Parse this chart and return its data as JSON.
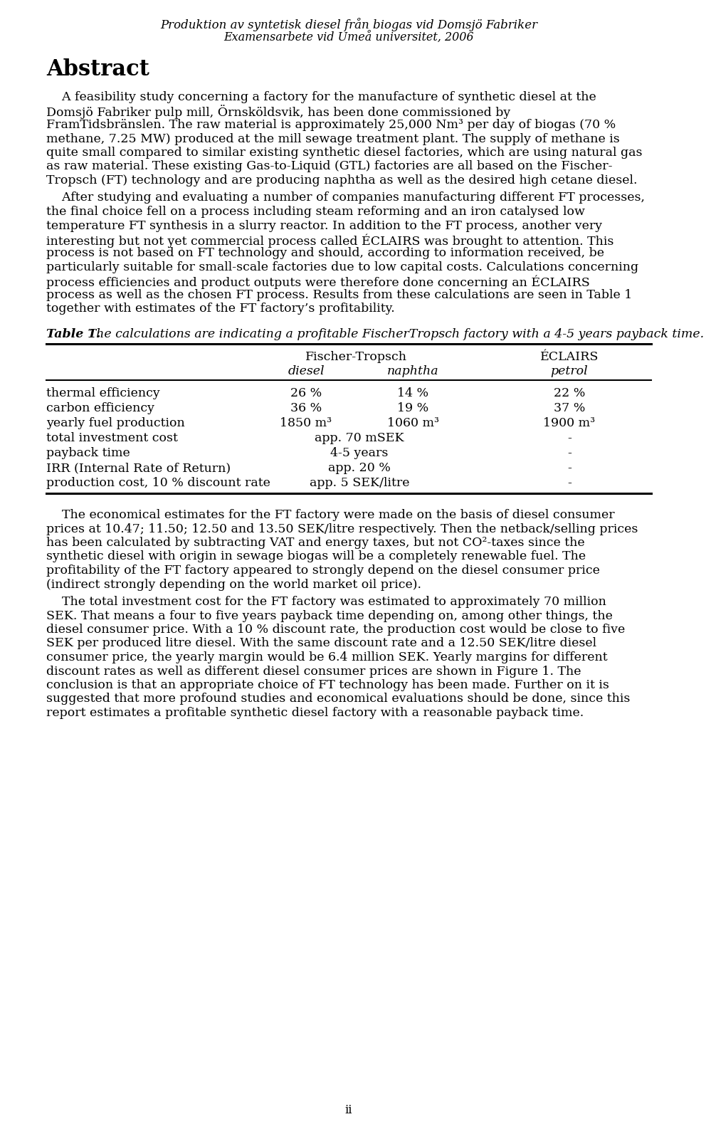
{
  "header_line1": "Produktion av syntetisk diesel från biogas vid Domsjö Fabriker",
  "header_line2": "Examensarbete vid Umeå universitet, 2006",
  "section_title": "Abstract",
  "p1_lines": [
    "    A feasibility study concerning a factory for the manufacture of synthetic diesel at the",
    "Domsjö Fabriker pulp mill, Örnsköldsvik, has been done commissioned by",
    "FramTidsbränslen. The raw material is approximately 25,000 Nm³ per day of biogas (70 %",
    "methane, 7.25 MW) produced at the mill sewage treatment plant. The supply of methane is",
    "quite small compared to similar existing synthetic diesel factories, which are using natural gas",
    "as raw material. These existing Gas-to-Liquid (GTL) factories are all based on the Fischer-",
    "Tropsch (FT) technology and are producing naphtha as well as the desired high cetane diesel."
  ],
  "p2_lines": [
    "    After studying and evaluating a number of companies manufacturing different FT processes,",
    "the final choice fell on a process including steam reforming and an iron catalysed low",
    "temperature FT synthesis in a slurry reactor. In addition to the FT process, another very",
    "interesting but not yet commercial process called ÉCLAIRS was brought to attention. This",
    "process is not based on FT technology and should, according to information received, be",
    "particularly suitable for small-scale factories due to low capital costs. Calculations concerning",
    "process efficiencies and product outputs were therefore done concerning an ÉCLAIRS",
    "process as well as the chosen FT process. Results from these calculations are seen in Table 1",
    "together with estimates of the FT factory’s profitability."
  ],
  "table_caption_bold": "Table 1.",
  "table_caption_italic": " The calculations are indicating a profitable FischerTropsch factory with a 4-5 years payback time.",
  "table_col1_header": "Fischer-Tropsch",
  "table_col2_header": "ÉCLAIRS",
  "table_sub1": "diesel",
  "table_sub2": "naphtha",
  "table_sub3": "petrol",
  "table_rows": [
    [
      "thermal efficiency",
      "26 %",
      "14 %",
      "22 %"
    ],
    [
      "carbon efficiency",
      "36 %",
      "19 %",
      "37 %"
    ],
    [
      "yearly fuel production",
      "1850 m³",
      "1060 m³",
      "1900 m³"
    ],
    [
      "total investment cost",
      "app. 70 mSEK",
      "",
      "-"
    ],
    [
      "payback time",
      "4-5 years",
      "",
      "-"
    ],
    [
      "IRR (Internal Rate of Return)",
      "app. 20 %",
      "",
      "-"
    ],
    [
      "production cost, 10 % discount rate",
      "app. 5 SEK/litre",
      "",
      "-"
    ]
  ],
  "p3_lines": [
    "    The economical estimates for the FT factory were made on the basis of diesel consumer",
    "prices at 10.47; 11.50; 12.50 and 13.50 SEK/litre respectively. Then the netback/selling prices",
    "has been calculated by subtracting VAT and energy taxes, but not CO²-taxes since the",
    "synthetic diesel with origin in sewage biogas will be a completely renewable fuel. The",
    "profitability of the FT factory appeared to strongly depend on the diesel consumer price",
    "(indirect strongly depending on the world market oil price)."
  ],
  "p4_lines": [
    "    The total investment cost for the FT factory was estimated to approximately 70 million",
    "SEK. That means a four to five years payback time depending on, among other things, the",
    "diesel consumer price. With a 10 % discount rate, the production cost would be close to five",
    "SEK per produced litre diesel. With the same discount rate and a 12.50 SEK/litre diesel",
    "consumer price, the yearly margin would be 6.4 million SEK. Yearly margins for different",
    "discount rates as well as different diesel consumer prices are shown in Figure 1. The",
    "conclusion is that an appropriate choice of FT technology has been made. Further on it is",
    "suggested that more profound studies and economical evaluations should be done, since this",
    "report estimates a profitable synthetic diesel factory with a reasonable payback time."
  ],
  "page_number": "ii",
  "lm": 55,
  "rm": 905,
  "bg_color": "#ffffff"
}
